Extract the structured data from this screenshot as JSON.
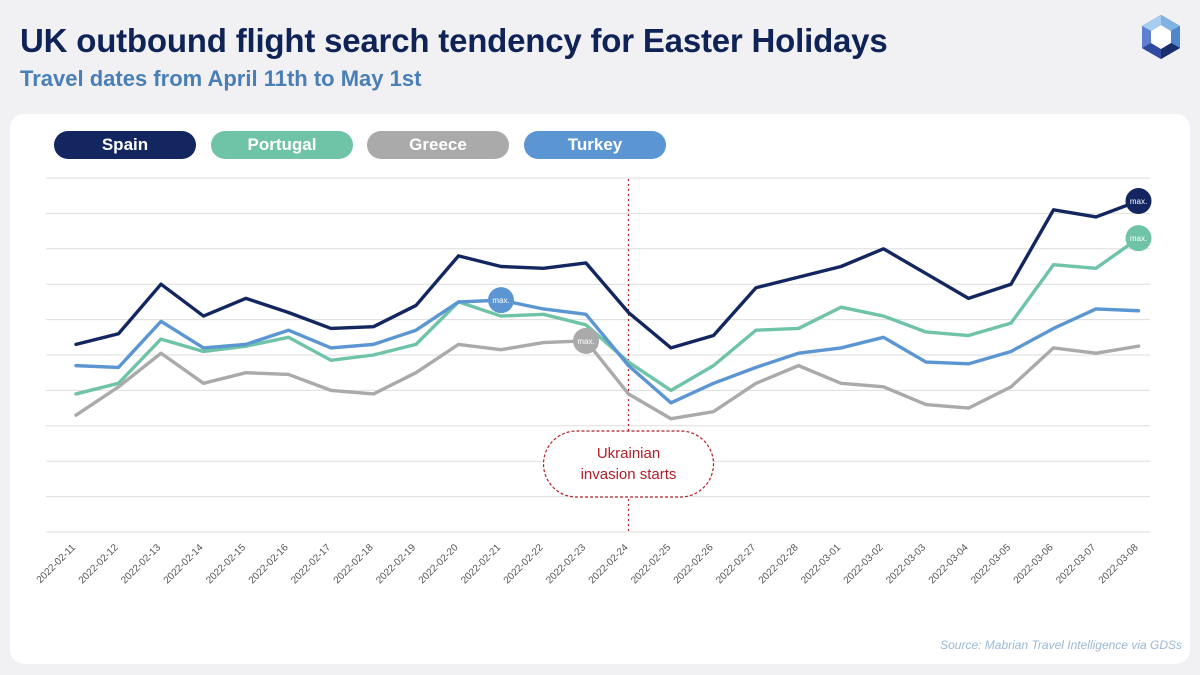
{
  "header": {
    "title": "UK outbound flight search tendency for Easter Holidays",
    "subtitle": "Travel dates from April 11th to May 1st"
  },
  "legend": [
    {
      "label": "Spain",
      "color": "#13265f"
    },
    {
      "label": "Portugal",
      "color": "#6fc3a6"
    },
    {
      "label": "Greece",
      "color": "#aaaaaa"
    },
    {
      "label": "Turkey",
      "color": "#5b96d3"
    }
  ],
  "annotation": {
    "line1": "Ukrainian",
    "line2": "invasion starts",
    "at": "2022-02-24",
    "color": "#b0202a"
  },
  "max_label": "max.",
  "source": "Source: Mabrian Travel Intelligence via GDSs",
  "chart_data": {
    "type": "line",
    "title": "UK outbound flight search tendency for Easter Holidays",
    "subtitle": "Travel dates from April 11th to May 1st",
    "xlabel": "",
    "ylabel": "",
    "ylim": [
      0,
      10
    ],
    "grid": true,
    "y_axis_labels": false,
    "legend_position": "top-left",
    "categories": [
      "2022-02-11",
      "2022-02-12",
      "2022-02-13",
      "2022-02-14",
      "2022-02-15",
      "2022-02-16",
      "2022-02-17",
      "2022-02-18",
      "2022-02-19",
      "2022-02-20",
      "2022-02-21",
      "2022-02-22",
      "2022-02-23",
      "2022-02-24",
      "2022-02-25",
      "2022-02-26",
      "2022-02-27",
      "2022-02-28",
      "2022-03-01",
      "2022-03-02",
      "2022-03-03",
      "2022-03-04",
      "2022-03-05",
      "2022-03-06",
      "2022-03-07",
      "2022-03-08"
    ],
    "series": [
      {
        "name": "Spain",
        "color": "#13265f",
        "max_index": 25,
        "values": [
          5.3,
          5.6,
          7.0,
          6.1,
          6.6,
          6.2,
          5.75,
          5.8,
          6.4,
          7.8,
          7.5,
          7.45,
          7.6,
          6.2,
          5.2,
          5.55,
          6.9,
          7.2,
          7.5,
          8.0,
          7.3,
          6.6,
          7.0,
          9.1,
          8.9,
          9.35
        ]
      },
      {
        "name": "Portugal",
        "color": "#6fc3a6",
        "max_index": 25,
        "values": [
          3.9,
          4.2,
          5.45,
          5.1,
          5.25,
          5.5,
          4.85,
          5.0,
          5.3,
          6.5,
          6.1,
          6.15,
          5.85,
          4.8,
          4.0,
          4.7,
          5.7,
          5.75,
          6.35,
          6.1,
          5.65,
          5.55,
          5.9,
          7.55,
          7.45,
          8.3
        ]
      },
      {
        "name": "Greece",
        "color": "#aaaaaa",
        "max_index": 12,
        "values": [
          3.3,
          4.1,
          5.05,
          4.2,
          4.5,
          4.45,
          4.0,
          3.9,
          4.5,
          5.3,
          5.15,
          5.35,
          5.4,
          3.9,
          3.2,
          3.4,
          4.2,
          4.7,
          4.2,
          4.1,
          3.6,
          3.5,
          4.1,
          5.2,
          5.05,
          5.25
        ]
      },
      {
        "name": "Turkey",
        "color": "#5b96d3",
        "max_index": 10,
        "values": [
          4.7,
          4.65,
          5.95,
          5.2,
          5.3,
          5.7,
          5.2,
          5.3,
          5.7,
          6.5,
          6.55,
          6.3,
          6.15,
          4.7,
          3.65,
          4.2,
          4.65,
          5.05,
          5.2,
          5.5,
          4.8,
          4.75,
          5.1,
          5.75,
          6.3,
          6.25
        ]
      }
    ]
  }
}
